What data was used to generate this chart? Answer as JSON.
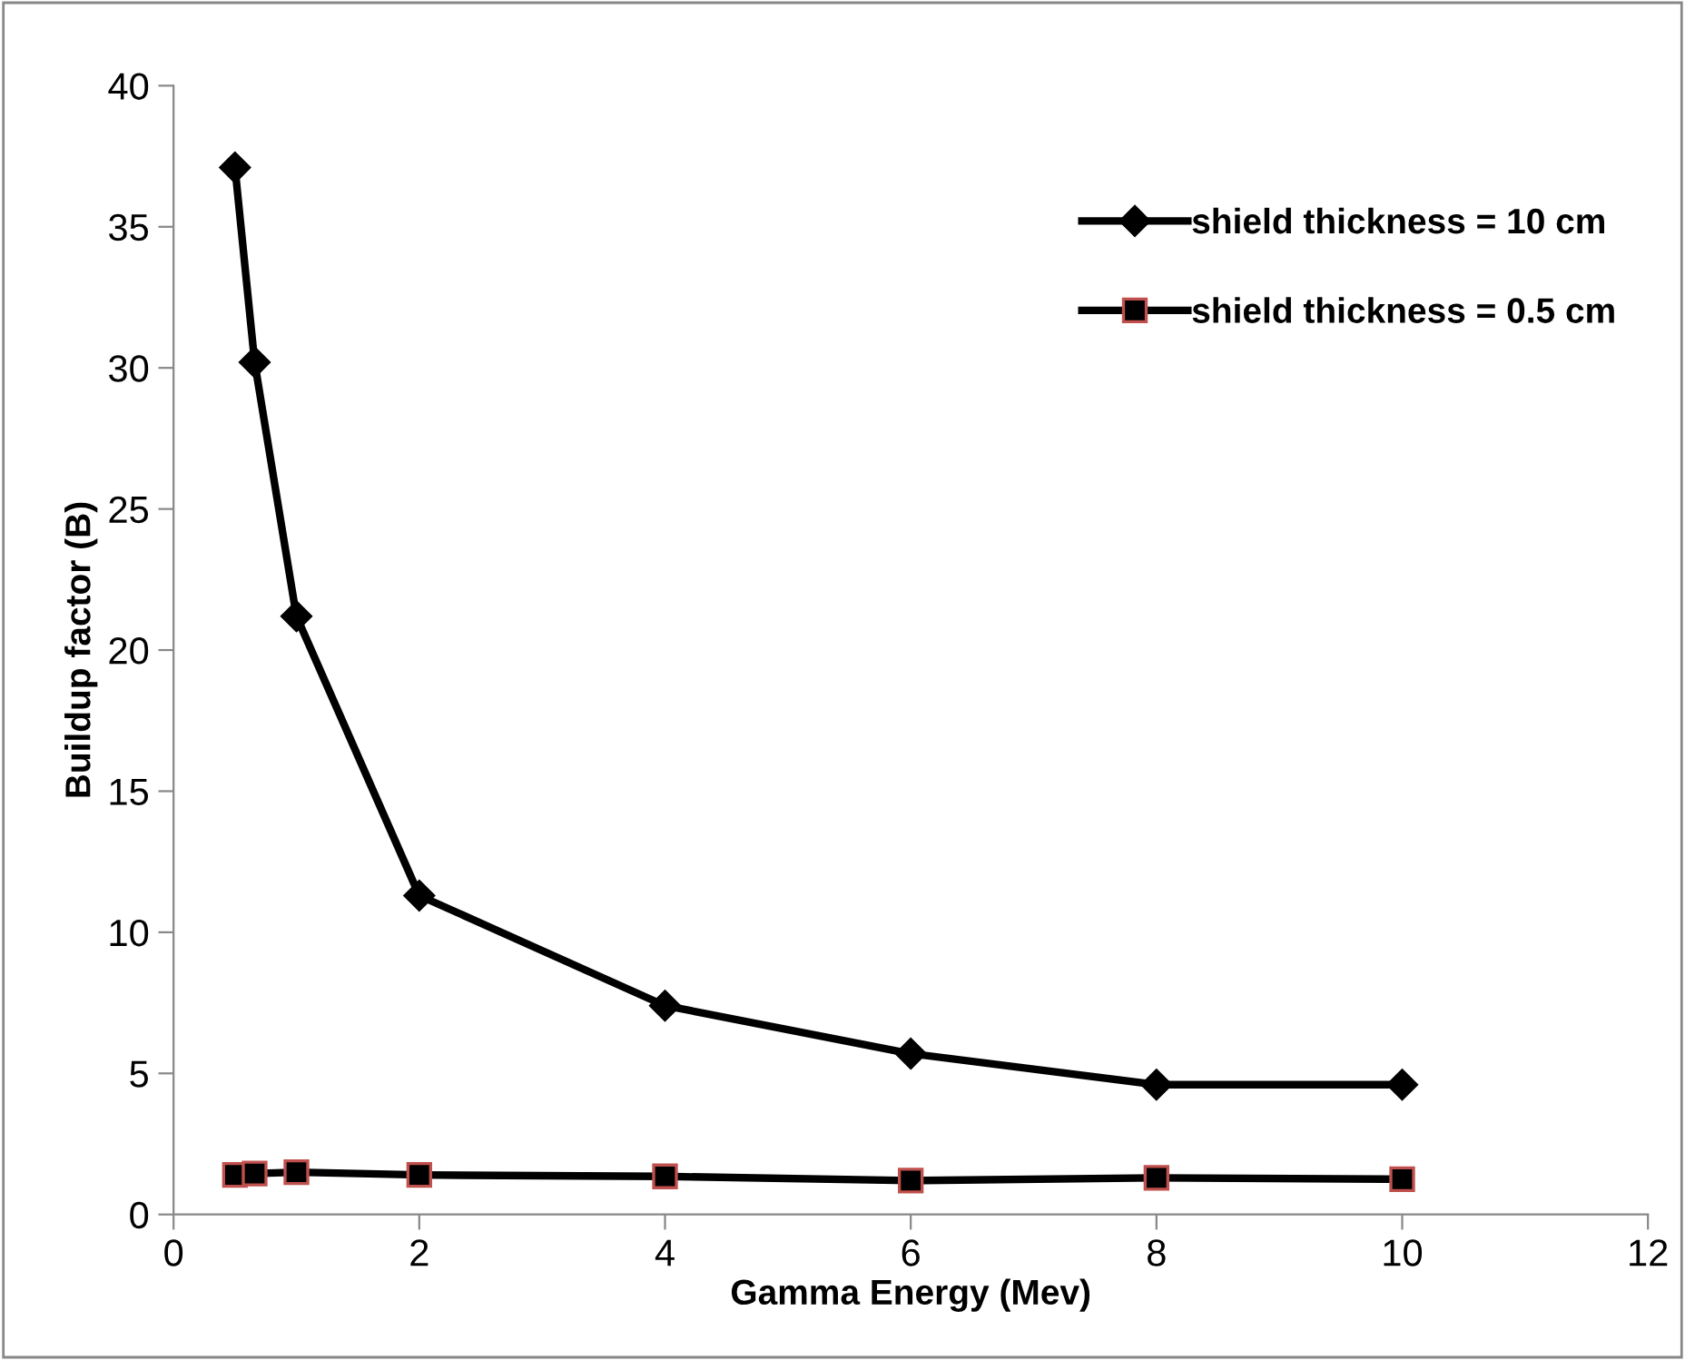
{
  "chart_data": {
    "type": "line",
    "xlabel": "Gamma Energy (Mev)",
    "ylabel": "Buildup factor (B)",
    "xlim": [
      0,
      12
    ],
    "xticks": [
      0,
      2,
      4,
      6,
      8,
      10,
      12
    ],
    "ylim": [
      0,
      40
    ],
    "yticks": [
      0,
      5,
      10,
      15,
      20,
      25,
      30,
      35,
      40
    ],
    "grid": false,
    "legend": "top right",
    "line_style": "solid",
    "series": [
      {
        "name": "shield thickness = 10 cm",
        "color": "#000000",
        "marker": "diamond",
        "x": [
          0.5,
          0.66,
          1,
          2,
          4,
          6,
          8,
          10
        ],
        "values": [
          37.1,
          30.2,
          21.2,
          11.3,
          7.4,
          5.7,
          4.6,
          4.6
        ]
      },
      {
        "name": "shield thickness = 0.5 cm",
        "color": "#000000",
        "marker": "square",
        "x": [
          0.5,
          0.66,
          1,
          2,
          4,
          6,
          8,
          10
        ],
        "values": [
          1.4,
          1.45,
          1.5,
          1.4,
          1.35,
          1.2,
          1.3,
          1.25
        ]
      }
    ]
  }
}
